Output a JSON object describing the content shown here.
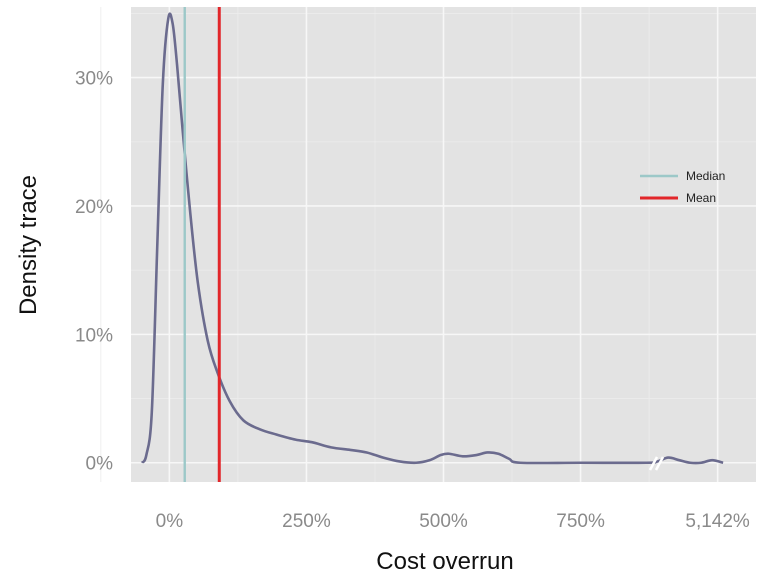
{
  "chart_data": {
    "type": "line",
    "xlabel": "Cost overrun",
    "ylabel": "Density trace",
    "x_ticks": [
      "0%",
      "250%",
      "500%",
      "750%",
      "5,142%"
    ],
    "y_ticks": [
      "0%",
      "10%",
      "20%",
      "30%"
    ],
    "xlim": [
      -0.7,
      10.7
    ],
    "ylim": [
      -1.5,
      35.5
    ],
    "x_axis_break": "between 750% and 5,142%",
    "grid": true,
    "legend_position": "right",
    "colors": {
      "panel": "#e3e3e3",
      "grid": "#f7f7f7",
      "density": "#6b6b8e",
      "median": "#9cc8c8",
      "mean": "#e2262a"
    },
    "series": [
      {
        "name": "Density trace",
        "x": [
          -0.5,
          -0.42,
          -0.32,
          -0.22,
          -0.12,
          -0.02,
          0.06,
          0.14,
          0.24,
          0.38,
          0.52,
          0.7,
          0.88,
          1.1,
          1.35,
          1.65,
          1.95,
          2.3,
          2.6,
          2.95,
          3.3,
          3.6,
          3.9,
          4.2,
          4.5,
          4.75,
          4.95,
          5.1,
          5.35,
          5.6,
          5.8,
          6.0,
          6.2,
          6.4,
          7.5,
          8.7,
          8.9,
          9.1,
          9.3,
          9.5,
          9.7,
          9.9,
          10.1
        ],
        "y": [
          0,
          0.6,
          4,
          17,
          29.5,
          34.6,
          34.2,
          31,
          26,
          19.5,
          14,
          9.5,
          7,
          4.8,
          3.3,
          2.6,
          2.2,
          1.8,
          1.6,
          1.2,
          1.0,
          0.8,
          0.4,
          0.1,
          0,
          0.2,
          0.6,
          0.7,
          0.5,
          0.6,
          0.8,
          0.7,
          0.3,
          0,
          0,
          0,
          0.1,
          0.4,
          0.2,
          0,
          0,
          0.2,
          0
        ]
      }
    ],
    "reference_lines": [
      {
        "name": "Median",
        "x": 0.28
      },
      {
        "name": "Mean",
        "x": 0.91
      }
    ]
  }
}
